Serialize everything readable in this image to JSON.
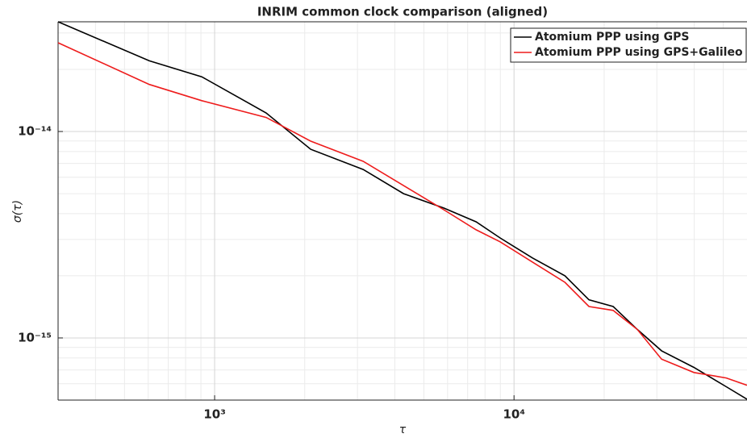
{
  "chart_data": {
    "type": "line",
    "title": "INRIM common clock comparison (aligned)",
    "x_label": "τ",
    "y_label": "σ(τ)",
    "log_x": true,
    "log_y": true,
    "grid": true,
    "minor_grid": true,
    "legend": "upper right",
    "xlim": [
      300,
      60000
    ],
    "ylim": [
      5e-16,
      3.4e-14
    ],
    "xticks": [
      {
        "value": 1000,
        "label": "10³"
      },
      {
        "value": 10000,
        "label": "10⁴"
      }
    ],
    "yticks": [
      {
        "value": 1e-15,
        "label": "10⁻¹⁵"
      },
      {
        "value": 1e-14,
        "label": "10⁻¹⁴"
      }
    ],
    "x": [
      300,
      605,
      906,
      1486,
      2094,
      3135,
      4276,
      5826,
      7470,
      8990,
      11530,
      14790,
      17800,
      21430,
      25800,
      31100,
      39900,
      51200,
      60000
    ],
    "series": [
      {
        "name": "Atomium PPP using GPS",
        "color": "#000000",
        "values": [
          3.4e-14,
          2.2e-14,
          1.84e-14,
          1.23e-14,
          8.2e-15,
          6.55e-15,
          5e-15,
          4.26e-15,
          3.65e-15,
          3.05e-15,
          2.44e-15,
          2e-15,
          1.53e-15,
          1.42e-15,
          1.1e-15,
          8.66e-16,
          7.2e-16,
          5.8e-16,
          5.05e-16
        ]
      },
      {
        "name": "Atomium PPP using GPS+Galileo",
        "color": "#ee1c1c",
        "values": [
          2.69e-14,
          1.69e-14,
          1.41e-14,
          1.17e-14,
          8.98e-15,
          7.17e-15,
          5.47e-15,
          4.18e-15,
          3.34e-15,
          2.92e-15,
          2.33e-15,
          1.86e-15,
          1.42e-15,
          1.36e-15,
          1.1e-15,
          7.9e-16,
          6.8e-16,
          6.4e-16,
          5.9e-16
        ]
      }
    ]
  }
}
